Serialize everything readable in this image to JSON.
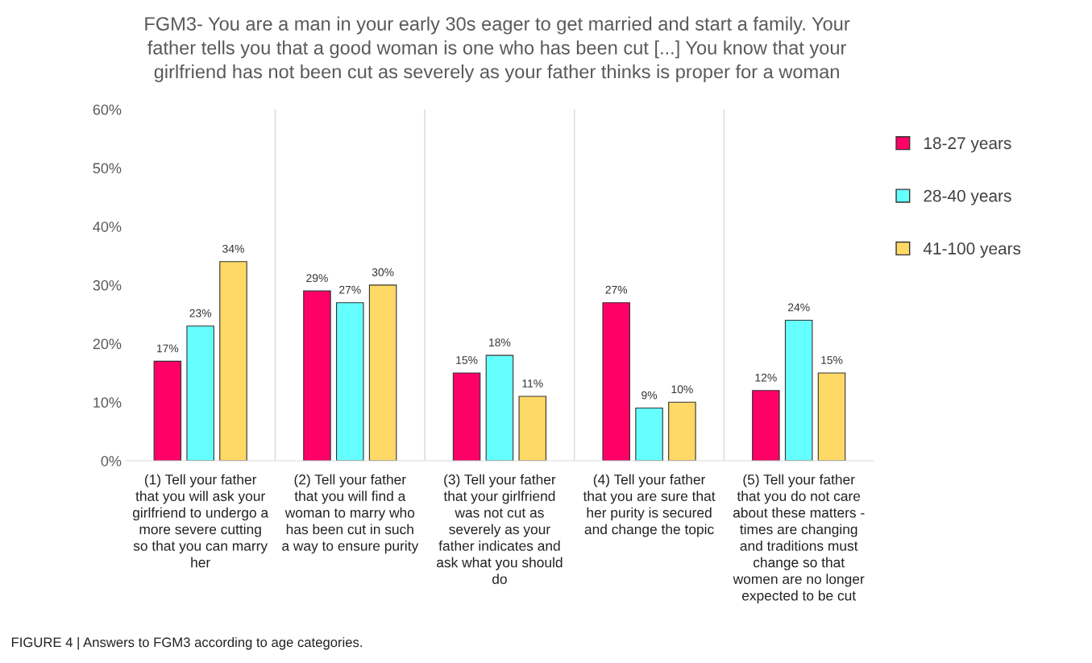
{
  "chart_data": {
    "type": "bar",
    "title": "FGM3- You are a man in your early 30s eager to get married and start a family. Your father tells you that a good woman is one who has been cut [...] You know that your girlfriend has not been cut as severely as your father thinks is proper for a woman",
    "categories": [
      "(1) Tell your father that you will ask your girlfriend to undergo a more severe cutting so that you can marry her",
      "(2) Tell your father that you will find a woman to marry who has been cut in such a way to ensure purity",
      "(3) Tell your father that your girlfriend was not cut as severely as your father indicates and ask what you should do",
      "(4) Tell your father that you are sure that her purity is secured and change the topic",
      "(5) Tell your father that you do not care about these matters - times are changing and traditions must change so that women are no longer expected to be cut"
    ],
    "series": [
      {
        "name": "18-27 years",
        "color": "#ff0066",
        "values": [
          17,
          29,
          15,
          27,
          12
        ],
        "value_labels": [
          "17%",
          "29%",
          "15%",
          "27%",
          "12%"
        ]
      },
      {
        "name": "28-40 years",
        "color": "#66ffff",
        "values": [
          23,
          27,
          18,
          9,
          24
        ],
        "value_labels": [
          "23%",
          "27%",
          "18%",
          "9%",
          "24%"
        ]
      },
      {
        "name": "41-100 years",
        "color": "#ffd966",
        "values": [
          34,
          30,
          11,
          10,
          15
        ],
        "value_labels": [
          "34%",
          "30%",
          "11%",
          "10%",
          "15%"
        ]
      }
    ],
    "ylim": [
      0,
      60
    ],
    "yticks": [
      {
        "value": 0,
        "label": "0%"
      },
      {
        "value": 10,
        "label": "10%"
      },
      {
        "value": 20,
        "label": "20%"
      },
      {
        "value": 30,
        "label": "30%"
      },
      {
        "value": 40,
        "label": "40%"
      },
      {
        "value": 50,
        "label": "50%"
      },
      {
        "value": 60,
        "label": "60%"
      }
    ],
    "grid": "x",
    "legend": "right",
    "annotations": [
      "FIGURE 4 | Answers to FGM3 according to age categories."
    ]
  }
}
